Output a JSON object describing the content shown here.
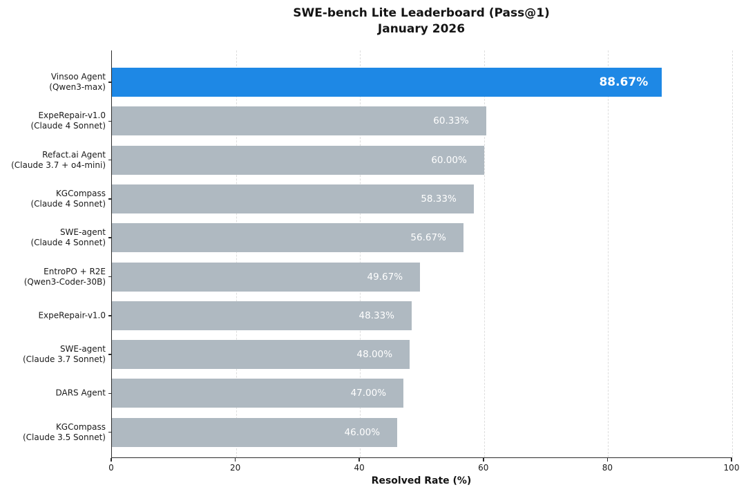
{
  "chart_data": {
    "type": "bar",
    "orientation": "horizontal",
    "title": "SWE-bench Lite Leaderboard (Pass@1)",
    "subtitle": "January 2026",
    "xlabel": "Resolved Rate (%)",
    "xlim": [
      0,
      100
    ],
    "xticks": [
      0,
      20,
      40,
      60,
      80,
      100
    ],
    "grid": "vertical-dashed",
    "legend": "none",
    "highlight_index": 0,
    "colors": {
      "highlight_bar": "#1E88E5",
      "default_bar": "#AFB9C1",
      "value_label_text": "#FFFFFF",
      "grid_line": "#DDDDDD",
      "axis_line": "#2B2B2B",
      "text": "#1A1A1A"
    },
    "rows": [
      {
        "name": "Vinsoo Agent",
        "model": "(Qwen3-max)",
        "value": 88.67,
        "label": "88.67%"
      },
      {
        "name": "ExpeRepair-v1.0",
        "model": "(Claude 4 Sonnet)",
        "value": 60.33,
        "label": "60.33%"
      },
      {
        "name": "Refact.ai Agent",
        "model": "(Claude 3.7 + o4-mini)",
        "value": 60.0,
        "label": "60.00%"
      },
      {
        "name": "KGCompass",
        "model": "(Claude 4 Sonnet)",
        "value": 58.33,
        "label": "58.33%"
      },
      {
        "name": "SWE-agent",
        "model": "(Claude 4 Sonnet)",
        "value": 56.67,
        "label": "56.67%"
      },
      {
        "name": "EntroPO + R2E",
        "model": "(Qwen3-Coder-30B)",
        "value": 49.67,
        "label": "49.67%"
      },
      {
        "name": "ExpeRepair-v1.0",
        "model": "",
        "value": 48.33,
        "label": "48.33%"
      },
      {
        "name": "SWE-agent",
        "model": "(Claude 3.7 Sonnet)",
        "value": 48.0,
        "label": "48.00%"
      },
      {
        "name": "DARS Agent",
        "model": "",
        "value": 47.0,
        "label": "47.00%"
      },
      {
        "name": "KGCompass",
        "model": "(Claude 3.5 Sonnet)",
        "value": 46.0,
        "label": "46.00%"
      }
    ]
  }
}
